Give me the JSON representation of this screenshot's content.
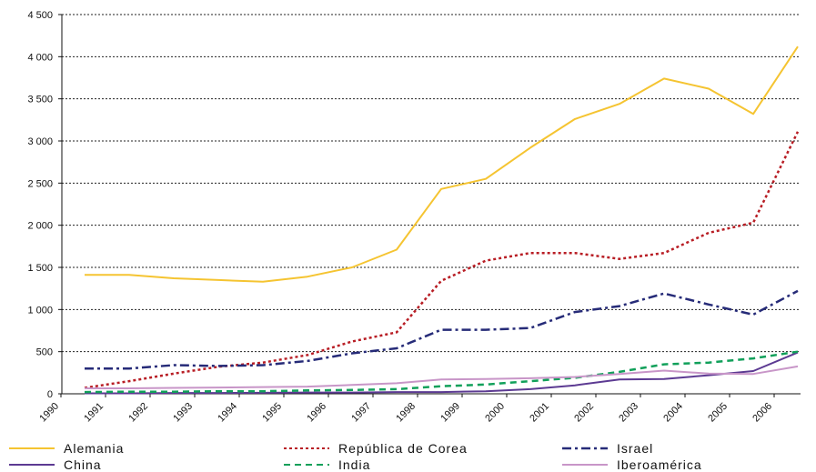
{
  "chart_data": {
    "type": "line",
    "title": "",
    "xlabel": "",
    "ylabel": "",
    "x_tick_labels": [
      "1990",
      "1991",
      "1992",
      "1993",
      "1994",
      "1995",
      "1996",
      "1997",
      "1998",
      "1999",
      "2000",
      "2001",
      "2002",
      "2003",
      "2004",
      "2005",
      "2006"
    ],
    "y_tick_labels": [
      "0",
      "500",
      "1 000",
      "1 500",
      "2 000",
      "2 500",
      "3 000",
      "3 500",
      "4 000",
      "4 500"
    ],
    "y_ticks": [
      0,
      500,
      1000,
      1500,
      2000,
      2500,
      3000,
      3500,
      4000,
      4500
    ],
    "ylim": [
      0,
      4500
    ],
    "grid": "horizontal dotted",
    "legend_position": "bottom",
    "x": [
      1990,
      1991,
      1992,
      1993,
      1994,
      1995,
      1996,
      1997,
      1998,
      1999,
      2000,
      2001,
      2002,
      2003,
      2004,
      2005,
      2006
    ],
    "series": [
      {
        "name": "Alemania",
        "color": "#f5c431",
        "dash": "solid",
        "values": [
          1410,
          1410,
          1370,
          1350,
          1330,
          1390,
          1500,
          1710,
          2430,
          2550,
          2920,
          3260,
          3440,
          3740,
          3620,
          3320,
          4120
        ]
      },
      {
        "name": "República de Corea",
        "color": "#b81d24",
        "dash": "dotted",
        "values": [
          70,
          150,
          240,
          320,
          370,
          460,
          620,
          730,
          1340,
          1580,
          1670,
          1670,
          1600,
          1670,
          1910,
          2030,
          3110
        ]
      },
      {
        "name": "Israel",
        "color": "#262b78",
        "dash": "dashdot",
        "values": [
          300,
          300,
          340,
          330,
          340,
          390,
          480,
          540,
          760,
          760,
          780,
          970,
          1040,
          1190,
          1060,
          940,
          1220
        ]
      },
      {
        "name": "China",
        "color": "#5c3a92",
        "dash": "solid",
        "values": [
          5,
          5,
          10,
          10,
          12,
          15,
          15,
          20,
          20,
          30,
          55,
          100,
          170,
          175,
          220,
          270,
          490
        ]
      },
      {
        "name": "India",
        "color": "#11a05a",
        "dash": "dashed",
        "values": [
          20,
          25,
          25,
          30,
          30,
          40,
          45,
          55,
          90,
          110,
          150,
          190,
          260,
          350,
          370,
          420,
          500
        ]
      },
      {
        "name": "Iberoamérica",
        "color": "#c896c8",
        "dash": "solid",
        "values": [
          65,
          65,
          70,
          75,
          80,
          85,
          105,
          125,
          170,
          175,
          185,
          200,
          235,
          275,
          240,
          235,
          325
        ]
      }
    ]
  }
}
